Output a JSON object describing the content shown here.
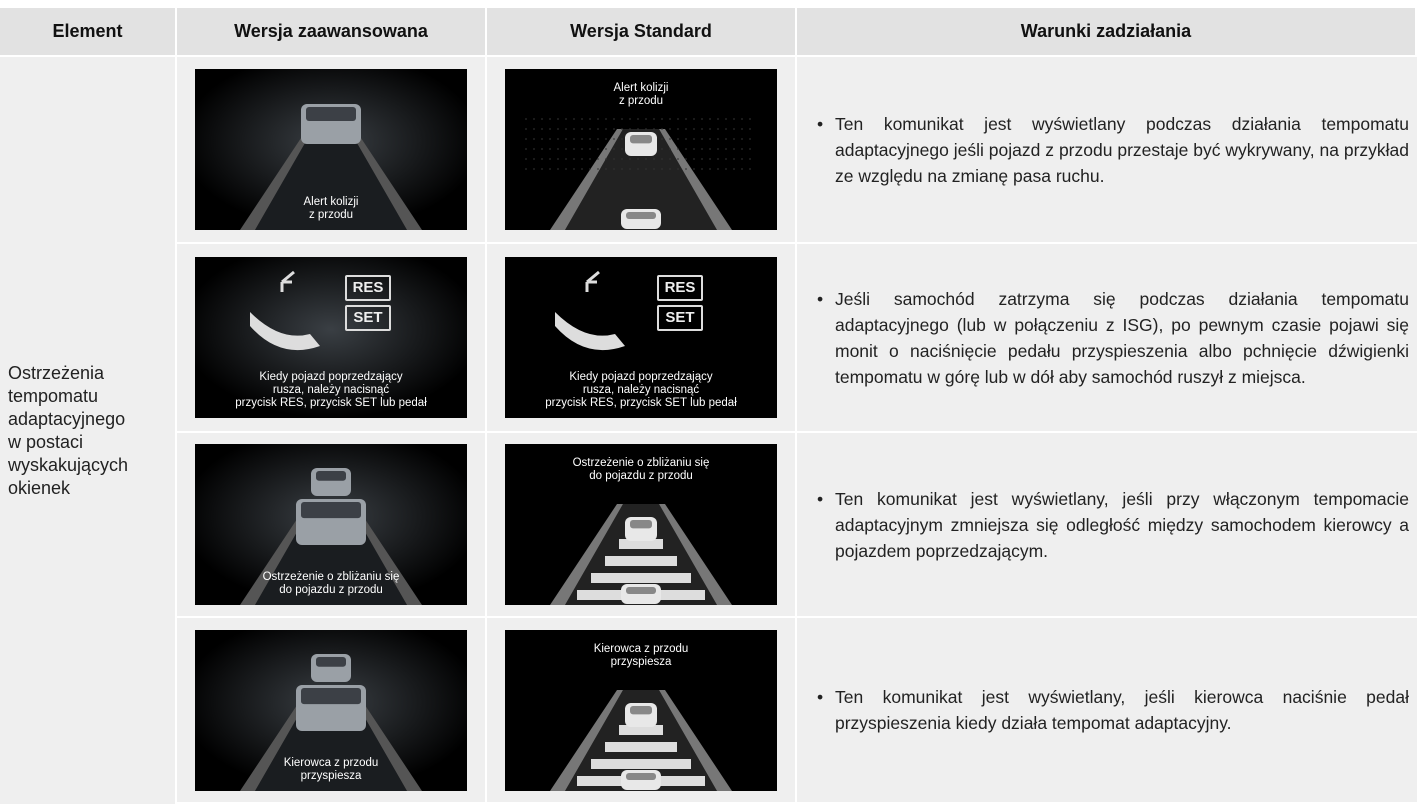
{
  "header": [
    "Element",
    "Wersja zaawansowana",
    "Wersja Standard",
    "Warunki zadziałania"
  ],
  "element": "Ostrzeżenia tempomatu adaptacyjnego w postaci wyskakujących okienek",
  "rows": [
    {
      "advanced": {
        "caption": [
          "Alert kolizji",
          "z przodu"
        ]
      },
      "standard": {
        "caption": [
          "Alert kolizji",
          "z przodu"
        ]
      },
      "description": "Ten komunikat jest wyświetlany podczas działania tempomatu adaptacyjnego jeśli pojazd z przodu przestaje być wykrywany, na przykład ze względu na zmianę pasa ruchu."
    },
    {
      "advanced": {
        "caption": [
          "Kiedy pojazd poprzedzający",
          "rusza, należy nacisnąć",
          "przycisk RES, przycisk SET lub pedał"
        ],
        "buttons": [
          "RES",
          "SET"
        ]
      },
      "standard": {
        "caption": [
          "Kiedy pojazd poprzedzający",
          "rusza, należy nacisnąć",
          "przycisk RES, przycisk SET lub pedał"
        ],
        "buttons": [
          "RES",
          "SET"
        ]
      },
      "description": "Jeśli samochód zatrzyma się podczas działania tempomatu adaptacyjnego (lub w połączeniu z ISG), po pewnym czasie pojawi się monit o naciśnięcie pedału przyspieszenia albo pchnięcie dźwigienki tempomatu w górę lub w dół aby samochód ruszył z miejsca."
    },
    {
      "advanced": {
        "caption": [
          "Ostrzeżenie o zbliżaniu się",
          "do pojazdu z przodu"
        ]
      },
      "standard": {
        "caption": [
          "Ostrzeżenie o zbliżaniu się",
          "do pojazdu z przodu"
        ]
      },
      "description": "Ten komunikat jest wyświetlany, jeśli przy włączonym tempomacie adaptacyjnym zmniejsza się odległość między samochodem kierowcy a pojazdem poprzedzającym."
    },
    {
      "advanced": {
        "caption": [
          "Kierowca z przodu",
          "przyspiesza"
        ]
      },
      "standard": {
        "caption": [
          "Kierowca z przodu",
          "przyspiesza"
        ]
      },
      "description": "Ten komunikat jest wyświetlany, jeśli kierowca naciśnie pedał przyspieszenia kiedy działa tempomat adaptacyjny."
    }
  ]
}
